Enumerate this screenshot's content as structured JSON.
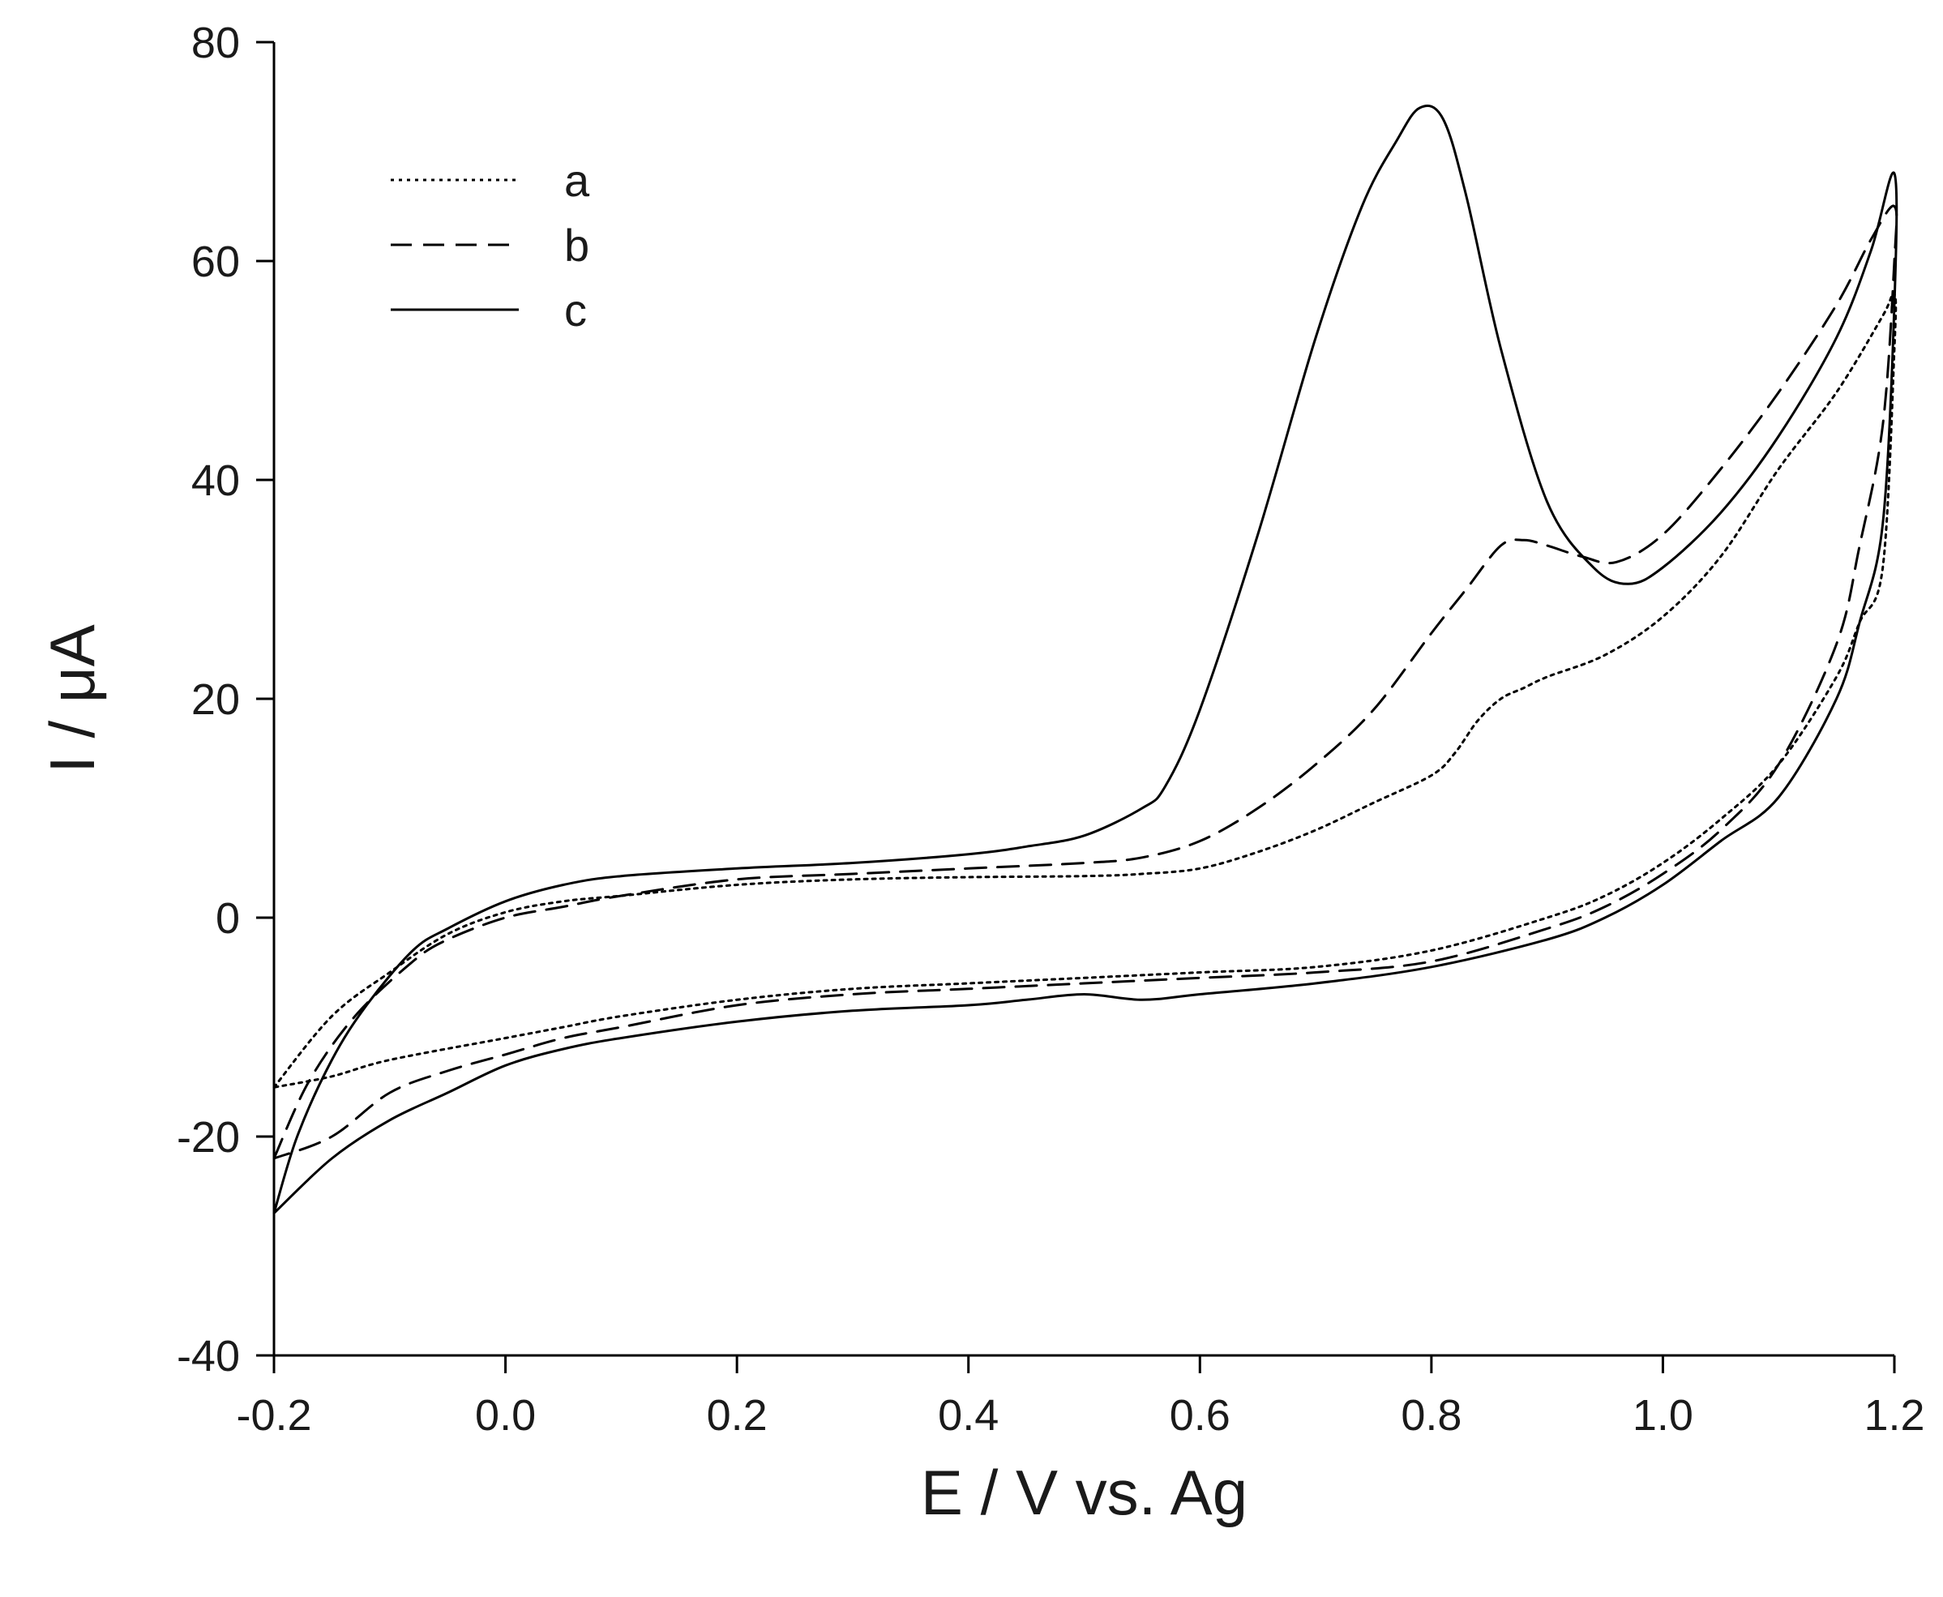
{
  "chart_data": {
    "type": "line",
    "title": "",
    "xlabel": "E / V vs. Ag",
    "ylabel": "I / μA",
    "xlim": [
      -0.2,
      1.2
    ],
    "ylim": [
      -40,
      80
    ],
    "xticks": [
      -0.2,
      0.0,
      0.2,
      0.4,
      0.6,
      0.8,
      1.0,
      1.2
    ],
    "xtick_labels": [
      "-0.2",
      "0.0",
      "0.2",
      "0.4",
      "0.6",
      "0.8",
      "1.0",
      "1.2"
    ],
    "yticks": [
      -40,
      -20,
      0,
      20,
      40,
      60,
      80
    ],
    "ytick_labels": [
      "-40",
      "-20",
      "0",
      "20",
      "40",
      "60",
      "80"
    ],
    "grid": false,
    "legend_position": "top-left",
    "series": [
      {
        "name": "a",
        "style": "dotted",
        "color": "#000000",
        "points": [
          [
            -0.2,
            -15.5
          ],
          [
            -0.15,
            -9
          ],
          [
            -0.1,
            -5
          ],
          [
            -0.05,
            -1.5
          ],
          [
            0.0,
            0.5
          ],
          [
            0.05,
            1.5
          ],
          [
            0.1,
            2
          ],
          [
            0.2,
            3
          ],
          [
            0.3,
            3.5
          ],
          [
            0.4,
            3.7
          ],
          [
            0.5,
            3.8
          ],
          [
            0.55,
            4
          ],
          [
            0.6,
            4.5
          ],
          [
            0.65,
            6
          ],
          [
            0.7,
            8
          ],
          [
            0.75,
            10.5
          ],
          [
            0.8,
            13
          ],
          [
            0.82,
            15
          ],
          [
            0.84,
            18
          ],
          [
            0.86,
            20
          ],
          [
            0.88,
            21
          ],
          [
            0.9,
            22
          ],
          [
            0.95,
            24
          ],
          [
            1.0,
            27.5
          ],
          [
            1.05,
            33
          ],
          [
            1.1,
            41
          ],
          [
            1.15,
            48
          ],
          [
            1.19,
            55
          ],
          [
            1.2,
            57
          ],
          [
            1.2,
            52
          ],
          [
            1.19,
            32
          ],
          [
            1.17,
            27
          ],
          [
            1.15,
            22
          ],
          [
            1.1,
            14
          ],
          [
            1.05,
            9
          ],
          [
            1.0,
            5
          ],
          [
            0.95,
            2
          ],
          [
            0.9,
            0
          ],
          [
            0.8,
            -3
          ],
          [
            0.7,
            -4.5
          ],
          [
            0.6,
            -5
          ],
          [
            0.5,
            -5.5
          ],
          [
            0.4,
            -6
          ],
          [
            0.3,
            -6.5
          ],
          [
            0.2,
            -7.5
          ],
          [
            0.1,
            -9
          ],
          [
            0.05,
            -10
          ],
          [
            0.0,
            -11
          ],
          [
            -0.1,
            -13
          ],
          [
            -0.15,
            -14.5
          ],
          [
            -0.2,
            -15.5
          ]
        ]
      },
      {
        "name": "b",
        "style": "dashed",
        "color": "#000000",
        "points": [
          [
            -0.2,
            -22
          ],
          [
            -0.17,
            -15
          ],
          [
            -0.13,
            -9
          ],
          [
            -0.08,
            -4
          ],
          [
            -0.05,
            -2
          ],
          [
            0.0,
            0
          ],
          [
            0.05,
            1
          ],
          [
            0.1,
            2
          ],
          [
            0.2,
            3.5
          ],
          [
            0.3,
            4
          ],
          [
            0.4,
            4.5
          ],
          [
            0.5,
            5
          ],
          [
            0.55,
            5.5
          ],
          [
            0.6,
            7
          ],
          [
            0.65,
            10
          ],
          [
            0.7,
            14
          ],
          [
            0.75,
            19
          ],
          [
            0.8,
            26
          ],
          [
            0.83,
            30
          ],
          [
            0.86,
            34
          ],
          [
            0.88,
            34.5
          ],
          [
            0.9,
            34
          ],
          [
            0.93,
            33
          ],
          [
            0.96,
            32.5
          ],
          [
            1.0,
            35
          ],
          [
            1.05,
            41
          ],
          [
            1.1,
            48
          ],
          [
            1.15,
            56
          ],
          [
            1.18,
            62
          ],
          [
            1.2,
            65
          ],
          [
            1.2,
            60
          ],
          [
            1.19,
            45
          ],
          [
            1.17,
            34
          ],
          [
            1.15,
            25
          ],
          [
            1.1,
            14
          ],
          [
            1.05,
            8
          ],
          [
            1.0,
            4
          ],
          [
            0.95,
            1
          ],
          [
            0.9,
            -1
          ],
          [
            0.8,
            -4
          ],
          [
            0.7,
            -5
          ],
          [
            0.6,
            -5.5
          ],
          [
            0.5,
            -6
          ],
          [
            0.4,
            -6.5
          ],
          [
            0.3,
            -7
          ],
          [
            0.2,
            -8
          ],
          [
            0.1,
            -10
          ],
          [
            0.05,
            -11
          ],
          [
            0.0,
            -12.5
          ],
          [
            -0.05,
            -14
          ],
          [
            -0.1,
            -16
          ],
          [
            -0.15,
            -20
          ],
          [
            -0.2,
            -22
          ]
        ]
      },
      {
        "name": "c",
        "style": "solid",
        "color": "#000000",
        "points": [
          [
            -0.2,
            -27
          ],
          [
            -0.18,
            -20
          ],
          [
            -0.15,
            -13
          ],
          [
            -0.12,
            -8
          ],
          [
            -0.08,
            -3
          ],
          [
            -0.05,
            -1
          ],
          [
            0.0,
            1.5
          ],
          [
            0.05,
            3
          ],
          [
            0.1,
            3.8
          ],
          [
            0.2,
            4.5
          ],
          [
            0.3,
            5
          ],
          [
            0.4,
            5.8
          ],
          [
            0.45,
            6.5
          ],
          [
            0.5,
            7.5
          ],
          [
            0.55,
            10
          ],
          [
            0.57,
            12
          ],
          [
            0.6,
            19
          ],
          [
            0.65,
            35
          ],
          [
            0.7,
            53
          ],
          [
            0.74,
            65
          ],
          [
            0.77,
            71
          ],
          [
            0.79,
            74
          ],
          [
            0.81,
            73
          ],
          [
            0.83,
            66
          ],
          [
            0.86,
            52
          ],
          [
            0.9,
            38
          ],
          [
            0.94,
            32
          ],
          [
            0.97,
            30.5
          ],
          [
            1.0,
            32
          ],
          [
            1.05,
            37
          ],
          [
            1.1,
            44
          ],
          [
            1.15,
            53
          ],
          [
            1.18,
            61
          ],
          [
            1.2,
            68
          ],
          [
            1.2,
            56
          ],
          [
            1.19,
            36
          ],
          [
            1.17,
            27
          ],
          [
            1.15,
            20
          ],
          [
            1.1,
            11
          ],
          [
            1.05,
            7
          ],
          [
            1.0,
            3
          ],
          [
            0.95,
            0
          ],
          [
            0.9,
            -2
          ],
          [
            0.8,
            -4.5
          ],
          [
            0.7,
            -6
          ],
          [
            0.6,
            -7
          ],
          [
            0.55,
            -7.5
          ],
          [
            0.5,
            -7
          ],
          [
            0.45,
            -7.5
          ],
          [
            0.4,
            -8
          ],
          [
            0.3,
            -8.5
          ],
          [
            0.2,
            -9.5
          ],
          [
            0.1,
            -11
          ],
          [
            0.05,
            -12
          ],
          [
            0.0,
            -13.5
          ],
          [
            -0.05,
            -16
          ],
          [
            -0.1,
            -18.5
          ],
          [
            -0.15,
            -22
          ],
          [
            -0.2,
            -27
          ]
        ]
      }
    ]
  }
}
